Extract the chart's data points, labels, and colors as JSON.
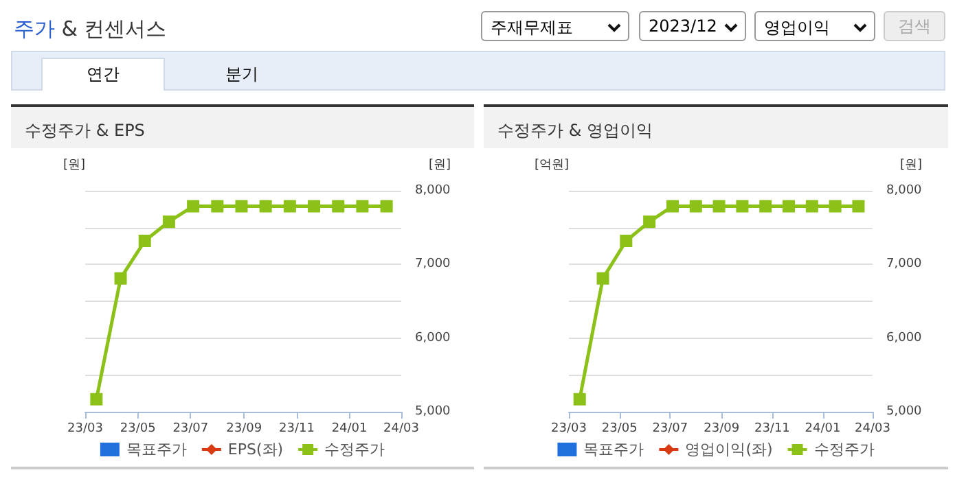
{
  "chart_data": [
    {
      "type": "other",
      "title": "주가 & 컨센서스",
      "annotations": [
        "주재무제표",
        "2023/12",
        "영업이익",
        "검색",
        "연간",
        "분기"
      ]
    },
    {
      "type": "line",
      "title": "수정주가 & EPS",
      "ylabel": "[원]",
      "y2label": "[원]",
      "x": [
        "2023-03-14",
        "2023-04-11",
        "2023-05-09",
        "2023-06-06",
        "2023-07-04",
        "2023-08-01",
        "2023-08-29",
        "2023-09-26",
        "2023-10-24",
        "2023-11-21",
        "2023-12-19",
        "2024-01-16",
        "2024-02-13"
      ],
      "series": [
        {
          "name": "목표주가",
          "type": "bar",
          "color": "#1f6fdc",
          "values": [
            null,
            null,
            null,
            null,
            null,
            null,
            null,
            null,
            null,
            null,
            null,
            null,
            null
          ]
        },
        {
          "name": "EPS(좌)",
          "type": "line",
          "marker": "diamond",
          "color": "#d83a12",
          "values": [
            null,
            null,
            null,
            null,
            null,
            null,
            null,
            null,
            null,
            null,
            null,
            null,
            null
          ]
        },
        {
          "name": "수정주가",
          "type": "line",
          "marker": "square",
          "axis": "y2",
          "color": "#8cc11a",
          "values": [
            5170,
            6810,
            7320,
            7580,
            7790,
            7790,
            7790,
            7790,
            7790,
            7790,
            7790,
            7790,
            7790
          ]
        }
      ],
      "xlim": [
        "2023-03",
        "2024-03"
      ],
      "xticks": [
        {
          "value": "2023-03",
          "label": "23/03"
        },
        {
          "value": "2023-05",
          "label": "23/05"
        },
        {
          "value": "2023-07",
          "label": "23/07"
        },
        {
          "value": "2023-09",
          "label": "23/09"
        },
        {
          "value": "2023-11",
          "label": "23/11"
        },
        {
          "value": "2024-01",
          "label": "24/01"
        },
        {
          "value": "2024-03",
          "label": "24/03"
        }
      ],
      "y2lim": [
        5000,
        8000
      ],
      "y2ticks": [
        {
          "value": 5000,
          "label": "5,000"
        },
        {
          "value": 6000,
          "label": "6,000"
        },
        {
          "value": 7000,
          "label": "7,000"
        },
        {
          "value": 8000,
          "label": "8,000"
        }
      ],
      "grid": "y",
      "legend": "bottom"
    },
    {
      "type": "line",
      "title": "수정주가 & 영업이익",
      "ylabel": "[억원]",
      "y2label": "[원]",
      "x": [
        "2023-03-14",
        "2023-04-11",
        "2023-05-09",
        "2023-06-06",
        "2023-07-04",
        "2023-08-01",
        "2023-08-29",
        "2023-09-26",
        "2023-10-24",
        "2023-11-21",
        "2023-12-19",
        "2024-01-16",
        "2024-02-13"
      ],
      "series": [
        {
          "name": "목표주가",
          "type": "bar",
          "color": "#1f6fdc",
          "values": [
            null,
            null,
            null,
            null,
            null,
            null,
            null,
            null,
            null,
            null,
            null,
            null,
            null
          ]
        },
        {
          "name": "영업이익(좌)",
          "type": "line",
          "marker": "diamond",
          "color": "#d83a12",
          "values": [
            null,
            null,
            null,
            null,
            null,
            null,
            null,
            null,
            null,
            null,
            null,
            null,
            null
          ]
        },
        {
          "name": "수정주가",
          "type": "line",
          "marker": "square",
          "axis": "y2",
          "color": "#8cc11a",
          "values": [
            5170,
            6810,
            7320,
            7580,
            7790,
            7790,
            7790,
            7790,
            7790,
            7790,
            7790,
            7790,
            7790
          ]
        }
      ],
      "xlim": [
        "2023-03",
        "2024-03"
      ],
      "xticks": [
        {
          "value": "2023-03",
          "label": "23/03"
        },
        {
          "value": "2023-05",
          "label": "23/05"
        },
        {
          "value": "2023-07",
          "label": "23/07"
        },
        {
          "value": "2023-09",
          "label": "23/09"
        },
        {
          "value": "2023-11",
          "label": "23/11"
        },
        {
          "value": "2024-01",
          "label": "24/01"
        },
        {
          "value": "2024-03",
          "label": "24/03"
        }
      ],
      "y2lim": [
        5000,
        8000
      ],
      "y2ticks": [
        {
          "value": 5000,
          "label": "5,000"
        },
        {
          "value": 6000,
          "label": "6,000"
        },
        {
          "value": 7000,
          "label": "7,000"
        },
        {
          "value": 8000,
          "label": "8,000"
        }
      ],
      "grid": "y",
      "legend": "bottom"
    }
  ]
}
